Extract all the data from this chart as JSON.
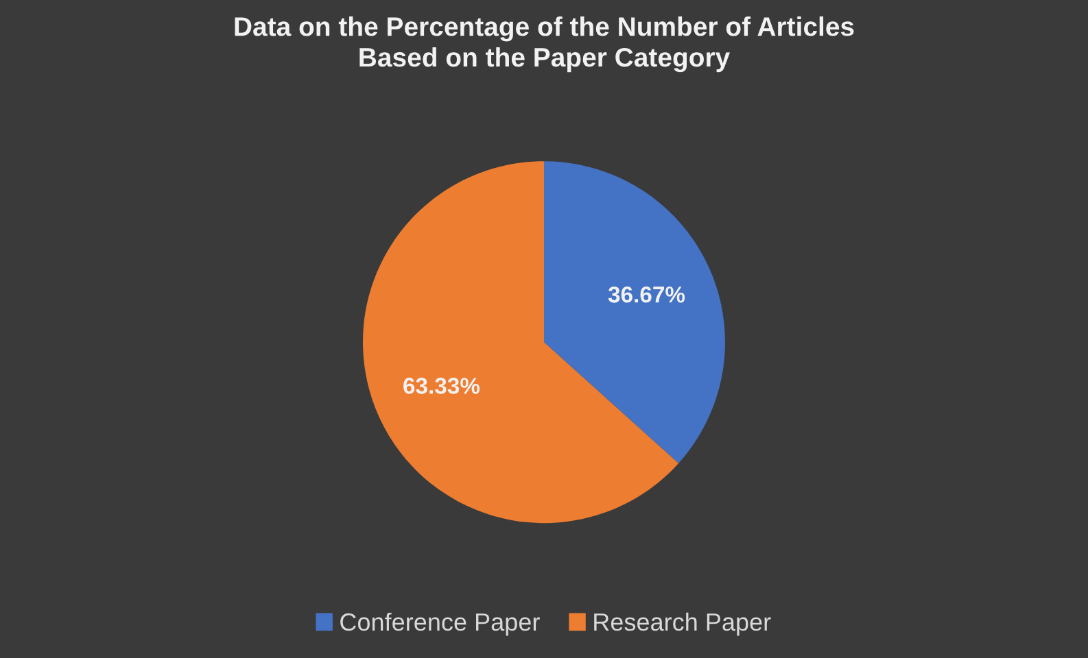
{
  "chart_data": {
    "type": "pie",
    "title": "Data on the Percentage of the Number of Articles\nBased on the Paper Category",
    "categories": [
      "Conference Paper",
      "Research Paper"
    ],
    "values": [
      36.67,
      63.33
    ],
    "colors": [
      "#4472c4",
      "#ed7d31"
    ],
    "value_labels": [
      "36.67%",
      "63.33%"
    ],
    "legend": "bottom"
  }
}
